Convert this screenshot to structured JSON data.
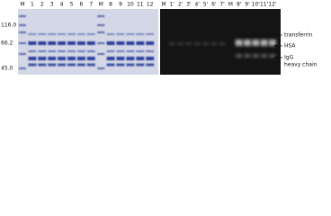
{
  "markers": [
    "116.0",
    "66.2",
    "45.0"
  ],
  "left_lanes": [
    "M",
    "1",
    "2",
    "3",
    "4",
    "5",
    "6",
    "7",
    "M",
    "8",
    "9",
    "10",
    "11",
    "12"
  ],
  "right_lanes": [
    "M",
    "1'",
    "2'",
    "3'",
    "4'",
    "5'",
    "6'",
    "7'",
    "M",
    "8'",
    "9'",
    "10'",
    "11'",
    "12'"
  ],
  "annotations": [
    "transferrin",
    "HSA",
    "IgG",
    "heavy chain"
  ]
}
